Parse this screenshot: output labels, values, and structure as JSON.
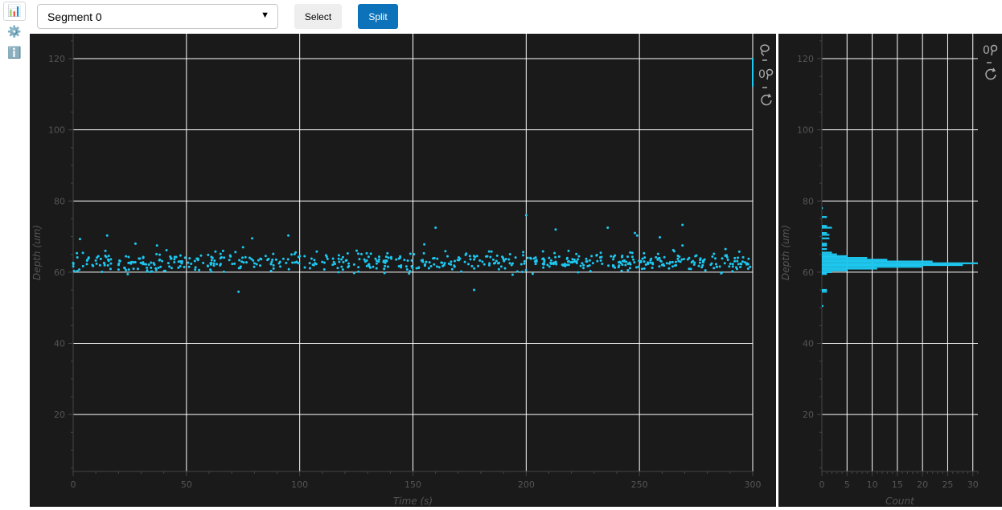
{
  "sidebar": {
    "items": [
      {
        "name": "chart-icon",
        "glyph": "📊",
        "active": true
      },
      {
        "name": "gear-icon",
        "glyph": "⚙️",
        "active": false
      },
      {
        "name": "info-icon",
        "glyph": "ℹ️",
        "active": false
      }
    ]
  },
  "toolbar": {
    "segment_select_value": "Segment 0",
    "caret": "▼",
    "select_label": "Select",
    "split_label": "Split"
  },
  "colors": {
    "background": "#1a1a1a",
    "grid": "#ffffff",
    "point": "#1ec8f0",
    "axis_text": "#555555",
    "accent": "#0c72b9"
  },
  "chart_data": [
    {
      "type": "scatter",
      "xlabel": "Time (s)",
      "ylabel": "Depth (um)",
      "xlim": [
        0,
        300
      ],
      "ylim": [
        4,
        127
      ],
      "xticks": [
        0,
        50,
        100,
        150,
        200,
        250,
        300
      ],
      "yticks": [
        20,
        40,
        60,
        80,
        100,
        120
      ],
      "grid": true,
      "n_points": 620,
      "y_center": 62.8,
      "y_spread": 1.3,
      "points_seed": 7,
      "outliers": [
        {
          "x": 3,
          "y": 69.3
        },
        {
          "x": 15,
          "y": 70.3
        },
        {
          "x": 27.5,
          "y": 68
        },
        {
          "x": 37,
          "y": 67.5
        },
        {
          "x": 73,
          "y": 54.5
        },
        {
          "x": 75,
          "y": 67
        },
        {
          "x": 79,
          "y": 69.5
        },
        {
          "x": 95,
          "y": 70.3
        },
        {
          "x": 155,
          "y": 67.8
        },
        {
          "x": 160,
          "y": 72.5
        },
        {
          "x": 177,
          "y": 55
        },
        {
          "x": 194,
          "y": 59.3
        },
        {
          "x": 200,
          "y": 76
        },
        {
          "x": 213,
          "y": 72
        },
        {
          "x": 236,
          "y": 72.5
        },
        {
          "x": 248,
          "y": 71
        },
        {
          "x": 249,
          "y": 70.3
        },
        {
          "x": 259,
          "y": 69.8
        },
        {
          "x": 269,
          "y": 73.3
        },
        {
          "x": 269,
          "y": 67.5
        },
        {
          "x": 288,
          "y": 66.5
        },
        {
          "x": 298,
          "y": 61
        }
      ]
    },
    {
      "type": "bar",
      "orientation": "horizontal",
      "xlabel": "Count",
      "xlim": [
        0,
        31
      ],
      "ylim": [
        4,
        127
      ],
      "xticks": [
        0,
        5,
        10,
        15,
        20,
        25,
        30
      ],
      "yticks": [
        20,
        40,
        60,
        80,
        100,
        120
      ],
      "grid": true,
      "bins": [
        {
          "y": 50.5,
          "count": 0.3
        },
        {
          "y": 54.5,
          "count": 1
        },
        {
          "y": 55,
          "count": 1
        },
        {
          "y": 59.5,
          "count": 1
        },
        {
          "y": 60,
          "count": 2
        },
        {
          "y": 60.5,
          "count": 5
        },
        {
          "y": 61,
          "count": 11
        },
        {
          "y": 61.5,
          "count": 20
        },
        {
          "y": 62,
          "count": 28
        },
        {
          "y": 62.5,
          "count": 31
        },
        {
          "y": 63,
          "count": 22
        },
        {
          "y": 63.5,
          "count": 13
        },
        {
          "y": 64,
          "count": 9
        },
        {
          "y": 64.5,
          "count": 5
        },
        {
          "y": 65,
          "count": 3
        },
        {
          "y": 65.5,
          "count": 2
        },
        {
          "y": 66.5,
          "count": 1
        },
        {
          "y": 67.5,
          "count": 1
        },
        {
          "y": 68,
          "count": 1
        },
        {
          "y": 69.5,
          "count": 1.5
        },
        {
          "y": 70.5,
          "count": 1.5
        },
        {
          "y": 71,
          "count": 1
        },
        {
          "y": 72.5,
          "count": 2
        },
        {
          "y": 73,
          "count": 1
        },
        {
          "y": 75.5,
          "count": 1
        },
        {
          "y": 78,
          "count": 0.2
        }
      ]
    }
  ]
}
